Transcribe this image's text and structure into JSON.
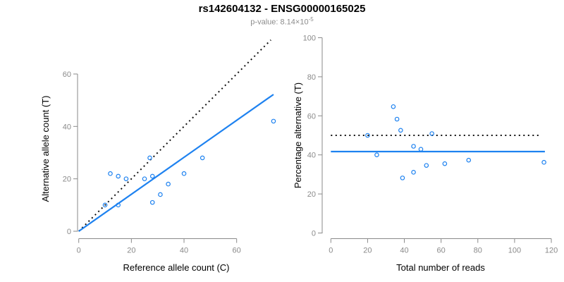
{
  "figure": {
    "title": "rs142604132 - ENSG00000165025",
    "subtitle_prefix": "p-value: 8.14×10",
    "subtitle_exponent": "-5",
    "colors": {
      "accent_blue": "#1E82F0",
      "axis_gray": "#8a8a8a",
      "dotted_black": "#111111",
      "subtitle_gray": "#8c8c8c"
    }
  },
  "chart_data": [
    {
      "type": "scatter",
      "panel": "left",
      "xlabel": "Reference allele count (C)",
      "ylabel": "Alternative allele count (T)",
      "x_ticks": [
        0,
        20,
        40,
        60
      ],
      "y_ticks": [
        0,
        20,
        40,
        60
      ],
      "xlim": [
        0,
        75
      ],
      "ylim": [
        0,
        65
      ],
      "grid": false,
      "points": [
        [
          10,
          10
        ],
        [
          12,
          22
        ],
        [
          15,
          21
        ],
        [
          15,
          10
        ],
        [
          18,
          20
        ],
        [
          25,
          20
        ],
        [
          27,
          28
        ],
        [
          28,
          21
        ],
        [
          28,
          11
        ],
        [
          31,
          14
        ],
        [
          34,
          18
        ],
        [
          40,
          22
        ],
        [
          47,
          28
        ],
        [
          74,
          42
        ]
      ],
      "lines": [
        {
          "name": "identity-line",
          "style": "dotted",
          "color": "#111111",
          "from": [
            0,
            0
          ],
          "to": [
            73,
            73
          ]
        },
        {
          "name": "regression-line",
          "style": "solid",
          "color": "#1E82F0",
          "from": [
            0,
            0
          ],
          "to": [
            74,
            52.2
          ]
        }
      ]
    },
    {
      "type": "scatter",
      "panel": "right",
      "xlabel": "Total number of reads",
      "ylabel": "Percentage alternative (T)",
      "x_ticks": [
        0,
        20,
        40,
        60,
        80,
        100,
        120
      ],
      "y_ticks": [
        0,
        20,
        40,
        60,
        80,
        100
      ],
      "xlim": [
        0,
        120
      ],
      "ylim": [
        0,
        100
      ],
      "grid": false,
      "points": [
        [
          20,
          50
        ],
        [
          25,
          40
        ],
        [
          34,
          64.7
        ],
        [
          36,
          58.3
        ],
        [
          38,
          52.6
        ],
        [
          39,
          28.2
        ],
        [
          45,
          44.4
        ],
        [
          45,
          31.1
        ],
        [
          49,
          42.9
        ],
        [
          52,
          34.6
        ],
        [
          55,
          50.9
        ],
        [
          62,
          35.5
        ],
        [
          75,
          37.3
        ],
        [
          116,
          36.2
        ]
      ],
      "lines": [
        {
          "name": "expected-50pct-line",
          "style": "dotted",
          "color": "#111111",
          "from": [
            0,
            50
          ],
          "to": [
            114.5,
            50
          ]
        },
        {
          "name": "mean-percentage-line",
          "style": "solid",
          "color": "#1E82F0",
          "from": [
            0,
            41.7
          ],
          "to": [
            116.5,
            41.7
          ]
        }
      ]
    }
  ]
}
